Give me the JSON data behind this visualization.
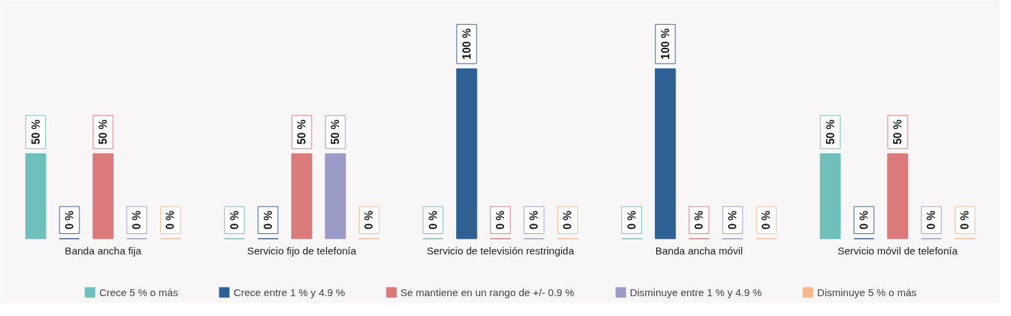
{
  "chart_data": {
    "type": "bar",
    "categories": [
      "Banda ancha fija",
      "Servicio fijo de telefonía",
      "Servicio de televisión restringida",
      "Banda ancha móvil",
      "Servicio móvil de telefonía"
    ],
    "series": [
      {
        "name": "Crece 5 % o más",
        "color": "#6fbfbc",
        "values": [
          50,
          0,
          0,
          0,
          50
        ],
        "value_labels": [
          "50 %",
          "0 %",
          "0 %",
          "0 %",
          "50 %"
        ]
      },
      {
        "name": "Crece entre 1 % y 4.9 %",
        "color": "#2f6094",
        "values": [
          0,
          0,
          100,
          100,
          0
        ],
        "value_labels": [
          "0 %",
          "0 %",
          "100 %",
          "100 %",
          "0 %"
        ]
      },
      {
        "name": "Se mantiene en un rango de +/- 0.9 %",
        "color": "#db7a7b",
        "values": [
          50,
          50,
          0,
          0,
          50
        ],
        "value_labels": [
          "50 %",
          "50 %",
          "0 %",
          "0 %",
          "50 %"
        ]
      },
      {
        "name": "Disminuye entre 1 % y 4.9 %",
        "color": "#9b9bc8",
        "values": [
          0,
          50,
          0,
          0,
          0
        ],
        "value_labels": [
          "0 %",
          "50 %",
          "0 %",
          "0 %",
          "0 %"
        ]
      },
      {
        "name": "Disminuye 5 % o más",
        "color": "#f6b98a",
        "values": [
          0,
          0,
          0,
          0,
          0
        ],
        "value_labels": [
          "0 %",
          "0 %",
          "0 %",
          "0 %",
          "0 %"
        ]
      }
    ],
    "legend": "bottom",
    "tick_labels": "x"
  }
}
